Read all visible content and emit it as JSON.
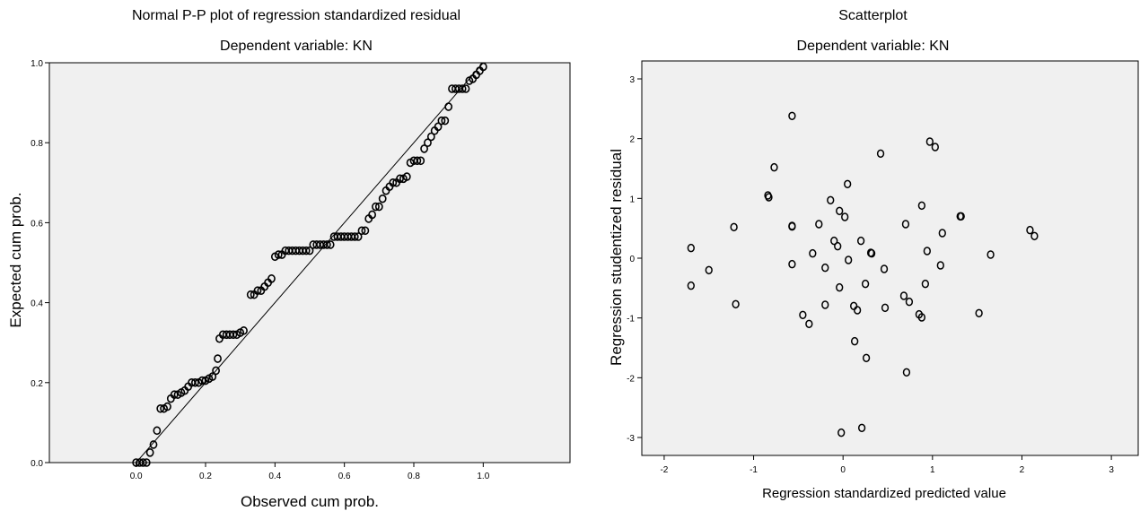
{
  "chart_data": [
    {
      "type": "scatter",
      "title": "Normal P-P plot of regression standardized residual",
      "subtitle": "Dependent variable: KN",
      "xlabel": "Observed cum prob.",
      "ylabel": "Expected cum prob.",
      "xlim": [
        -0.25,
        1.25
      ],
      "ylim": [
        0,
        1.0
      ],
      "xticks": [
        "0.0",
        "0.2",
        "0.4",
        "0.6",
        "0.8",
        "1.0"
      ],
      "yticks": [
        "0.0",
        "0.2",
        "0.4",
        "0.6",
        "0.8",
        "1.0"
      ],
      "reference_line": [
        [
          0,
          0
        ],
        [
          1,
          1
        ]
      ],
      "grid": false,
      "points": [
        [
          0.0,
          0.0
        ],
        [
          0.01,
          0.0
        ],
        [
          0.02,
          0.0
        ],
        [
          0.03,
          0.0
        ],
        [
          0.04,
          0.025
        ],
        [
          0.05,
          0.045
        ],
        [
          0.06,
          0.08
        ],
        [
          0.07,
          0.135
        ],
        [
          0.08,
          0.135
        ],
        [
          0.09,
          0.14
        ],
        [
          0.1,
          0.16
        ],
        [
          0.11,
          0.17
        ],
        [
          0.12,
          0.17
        ],
        [
          0.13,
          0.175
        ],
        [
          0.14,
          0.18
        ],
        [
          0.15,
          0.19
        ],
        [
          0.16,
          0.2
        ],
        [
          0.17,
          0.2
        ],
        [
          0.18,
          0.2
        ],
        [
          0.19,
          0.205
        ],
        [
          0.2,
          0.205
        ],
        [
          0.21,
          0.21
        ],
        [
          0.22,
          0.215
        ],
        [
          0.23,
          0.23
        ],
        [
          0.235,
          0.26
        ],
        [
          0.24,
          0.31
        ],
        [
          0.25,
          0.32
        ],
        [
          0.26,
          0.32
        ],
        [
          0.27,
          0.32
        ],
        [
          0.28,
          0.32
        ],
        [
          0.29,
          0.32
        ],
        [
          0.3,
          0.325
        ],
        [
          0.31,
          0.33
        ],
        [
          0.33,
          0.42
        ],
        [
          0.34,
          0.42
        ],
        [
          0.35,
          0.43
        ],
        [
          0.36,
          0.43
        ],
        [
          0.37,
          0.44
        ],
        [
          0.38,
          0.45
        ],
        [
          0.39,
          0.46
        ],
        [
          0.4,
          0.515
        ],
        [
          0.41,
          0.52
        ],
        [
          0.42,
          0.52
        ],
        [
          0.43,
          0.53
        ],
        [
          0.44,
          0.53
        ],
        [
          0.45,
          0.53
        ],
        [
          0.46,
          0.53
        ],
        [
          0.47,
          0.53
        ],
        [
          0.48,
          0.53
        ],
        [
          0.49,
          0.53
        ],
        [
          0.5,
          0.53
        ],
        [
          0.51,
          0.545
        ],
        [
          0.52,
          0.545
        ],
        [
          0.53,
          0.545
        ],
        [
          0.54,
          0.545
        ],
        [
          0.55,
          0.545
        ],
        [
          0.56,
          0.545
        ],
        [
          0.57,
          0.565
        ],
        [
          0.58,
          0.565
        ],
        [
          0.59,
          0.565
        ],
        [
          0.6,
          0.565
        ],
        [
          0.61,
          0.565
        ],
        [
          0.62,
          0.565
        ],
        [
          0.63,
          0.565
        ],
        [
          0.64,
          0.565
        ],
        [
          0.65,
          0.58
        ],
        [
          0.66,
          0.58
        ],
        [
          0.67,
          0.61
        ],
        [
          0.68,
          0.62
        ],
        [
          0.69,
          0.64
        ],
        [
          0.7,
          0.64
        ],
        [
          0.71,
          0.66
        ],
        [
          0.72,
          0.68
        ],
        [
          0.73,
          0.69
        ],
        [
          0.74,
          0.7
        ],
        [
          0.75,
          0.7
        ],
        [
          0.76,
          0.71
        ],
        [
          0.77,
          0.71
        ],
        [
          0.78,
          0.715
        ],
        [
          0.79,
          0.75
        ],
        [
          0.8,
          0.755
        ],
        [
          0.81,
          0.755
        ],
        [
          0.82,
          0.755
        ],
        [
          0.83,
          0.785
        ],
        [
          0.84,
          0.8
        ],
        [
          0.85,
          0.815
        ],
        [
          0.86,
          0.83
        ],
        [
          0.87,
          0.84
        ],
        [
          0.88,
          0.855
        ],
        [
          0.89,
          0.855
        ],
        [
          0.9,
          0.89
        ],
        [
          0.91,
          0.935
        ],
        [
          0.92,
          0.935
        ],
        [
          0.93,
          0.935
        ],
        [
          0.94,
          0.935
        ],
        [
          0.95,
          0.935
        ],
        [
          0.96,
          0.955
        ],
        [
          0.97,
          0.96
        ],
        [
          0.98,
          0.97
        ],
        [
          0.99,
          0.98
        ],
        [
          1.0,
          0.99
        ]
      ]
    },
    {
      "type": "scatter",
      "title": "Scatterplot",
      "subtitle": "Dependent variable: KN",
      "xlabel": "Regression standardized predicted value",
      "ylabel": "Regression studentized residual",
      "xlim": [
        -2.25,
        3.3
      ],
      "ylim": [
        -3.3,
        3.3
      ],
      "xticks": [
        "-2",
        "-1",
        "0",
        "1",
        "2",
        "3"
      ],
      "yticks": [
        "3",
        "2",
        "1",
        "0",
        "-1",
        "-2",
        "-3"
      ],
      "grid": false,
      "points": [
        [
          -1.7,
          0.17
        ],
        [
          -1.7,
          -0.46
        ],
        [
          -1.5,
          -0.2
        ],
        [
          -1.22,
          0.52
        ],
        [
          -1.2,
          -0.77
        ],
        [
          -0.84,
          1.05
        ],
        [
          -0.83,
          1.02
        ],
        [
          -0.77,
          1.52
        ],
        [
          -0.57,
          2.38
        ],
        [
          -0.57,
          0.54
        ],
        [
          -0.57,
          0.53
        ],
        [
          -0.57,
          -0.1
        ],
        [
          -0.45,
          -0.95
        ],
        [
          -0.38,
          -1.1
        ],
        [
          -0.34,
          0.08
        ],
        [
          -0.27,
          0.57
        ],
        [
          -0.2,
          -0.16
        ],
        [
          -0.2,
          -0.78
        ],
        [
          -0.14,
          0.97
        ],
        [
          -0.1,
          0.29
        ],
        [
          -0.06,
          0.2
        ],
        [
          -0.04,
          0.79
        ],
        [
          -0.04,
          -0.49
        ],
        [
          -0.02,
          -2.92
        ],
        [
          0.02,
          0.69
        ],
        [
          0.05,
          1.24
        ],
        [
          0.06,
          -0.03
        ],
        [
          0.12,
          -0.8
        ],
        [
          0.13,
          -1.39
        ],
        [
          0.16,
          -0.87
        ],
        [
          0.2,
          0.29
        ],
        [
          0.21,
          -2.84
        ],
        [
          0.25,
          -0.43
        ],
        [
          0.26,
          -1.67
        ],
        [
          0.31,
          0.09
        ],
        [
          0.32,
          0.08
        ],
        [
          0.42,
          1.75
        ],
        [
          0.46,
          -0.18
        ],
        [
          0.47,
          -0.83
        ],
        [
          0.68,
          -0.63
        ],
        [
          0.7,
          0.57
        ],
        [
          0.71,
          -1.91
        ],
        [
          0.74,
          -0.73
        ],
        [
          0.85,
          -0.94
        ],
        [
          0.88,
          0.88
        ],
        [
          0.88,
          -0.99
        ],
        [
          0.92,
          -0.43
        ],
        [
          0.94,
          0.12
        ],
        [
          0.97,
          1.95
        ],
        [
          1.03,
          1.86
        ],
        [
          1.09,
          -0.12
        ],
        [
          1.11,
          0.42
        ],
        [
          1.31,
          0.7
        ],
        [
          1.32,
          0.7
        ],
        [
          1.52,
          -0.92
        ],
        [
          1.65,
          0.06
        ],
        [
          2.09,
          0.47
        ],
        [
          2.14,
          0.37
        ]
      ]
    }
  ]
}
